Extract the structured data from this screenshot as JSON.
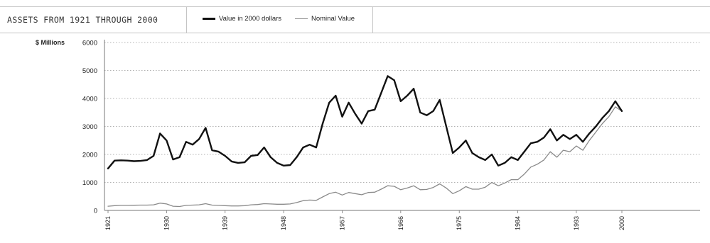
{
  "header": {
    "title": "ASSETS FROM 1921 THROUGH 2000"
  },
  "chart_data": {
    "type": "line",
    "title": "ASSETS FROM 1921 THROUGH 2000",
    "ylabel": "$ Millions",
    "xlabel": "",
    "ylim": [
      0,
      6000
    ],
    "xlim": [
      1921,
      2000
    ],
    "yticks": [
      0,
      1000,
      2000,
      3000,
      4000,
      5000,
      6000
    ],
    "xticks": [
      1921,
      1930,
      1939,
      1948,
      1957,
      1966,
      1975,
      1984,
      1993,
      2000
    ],
    "grid": "horizontal dotted",
    "legend_position": "top",
    "colors": {
      "real": "#111111",
      "nominal": "#8a8a8a"
    },
    "series": [
      {
        "name": "Value in 2000 dollars",
        "points": [
          [
            1921,
            1500
          ],
          [
            1922,
            1780
          ],
          [
            1923,
            1790
          ],
          [
            1924,
            1780
          ],
          [
            1925,
            1760
          ],
          [
            1926,
            1770
          ],
          [
            1927,
            1800
          ],
          [
            1928,
            1950
          ],
          [
            1929,
            2750
          ],
          [
            1930,
            2500
          ],
          [
            1931,
            1820
          ],
          [
            1932,
            1900
          ],
          [
            1933,
            2450
          ],
          [
            1934,
            2350
          ],
          [
            1935,
            2550
          ],
          [
            1936,
            2950
          ],
          [
            1937,
            2150
          ],
          [
            1938,
            2100
          ],
          [
            1939,
            1950
          ],
          [
            1940,
            1750
          ],
          [
            1941,
            1700
          ],
          [
            1942,
            1720
          ],
          [
            1943,
            1950
          ],
          [
            1944,
            1980
          ],
          [
            1945,
            2250
          ],
          [
            1946,
            1900
          ],
          [
            1947,
            1700
          ],
          [
            1948,
            1600
          ],
          [
            1949,
            1620
          ],
          [
            1950,
            1900
          ],
          [
            1951,
            2250
          ],
          [
            1952,
            2350
          ],
          [
            1953,
            2250
          ],
          [
            1954,
            3100
          ],
          [
            1955,
            3850
          ],
          [
            1956,
            4100
          ],
          [
            1957,
            3350
          ],
          [
            1958,
            3850
          ],
          [
            1959,
            3450
          ],
          [
            1960,
            3100
          ],
          [
            1961,
            3550
          ],
          [
            1962,
            3600
          ],
          [
            1963,
            4200
          ],
          [
            1964,
            4800
          ],
          [
            1965,
            4650
          ],
          [
            1966,
            3900
          ],
          [
            1967,
            4100
          ],
          [
            1968,
            4350
          ],
          [
            1969,
            3500
          ],
          [
            1970,
            3400
          ],
          [
            1971,
            3550
          ],
          [
            1972,
            3950
          ],
          [
            1973,
            3000
          ],
          [
            1974,
            2050
          ],
          [
            1975,
            2250
          ],
          [
            1976,
            2500
          ],
          [
            1977,
            2050
          ],
          [
            1978,
            1900
          ],
          [
            1979,
            1800
          ],
          [
            1980,
            2000
          ],
          [
            1981,
            1600
          ],
          [
            1982,
            1700
          ],
          [
            1983,
            1900
          ],
          [
            1984,
            1800
          ],
          [
            1985,
            2100
          ],
          [
            1986,
            2400
          ],
          [
            1987,
            2450
          ],
          [
            1988,
            2600
          ],
          [
            1989,
            2900
          ],
          [
            1990,
            2500
          ],
          [
            1991,
            2700
          ],
          [
            1992,
            2550
          ],
          [
            1993,
            2700
          ],
          [
            1994,
            2450
          ],
          [
            1995,
            2750
          ],
          [
            1996,
            3000
          ],
          [
            1997,
            3300
          ],
          [
            1998,
            3550
          ],
          [
            1999,
            3900
          ],
          [
            2000,
            3550
          ]
        ]
      },
      {
        "name": "Nominal Value",
        "points": [
          [
            1921,
            150
          ],
          [
            1922,
            170
          ],
          [
            1923,
            180
          ],
          [
            1924,
            180
          ],
          [
            1925,
            185
          ],
          [
            1926,
            190
          ],
          [
            1927,
            190
          ],
          [
            1928,
            200
          ],
          [
            1929,
            260
          ],
          [
            1930,
            230
          ],
          [
            1931,
            150
          ],
          [
            1932,
            140
          ],
          [
            1933,
            180
          ],
          [
            1934,
            190
          ],
          [
            1935,
            200
          ],
          [
            1936,
            240
          ],
          [
            1937,
            190
          ],
          [
            1938,
            180
          ],
          [
            1939,
            170
          ],
          [
            1940,
            160
          ],
          [
            1941,
            160
          ],
          [
            1942,
            170
          ],
          [
            1943,
            200
          ],
          [
            1944,
            210
          ],
          [
            1945,
            240
          ],
          [
            1946,
            230
          ],
          [
            1947,
            220
          ],
          [
            1948,
            220
          ],
          [
            1949,
            230
          ],
          [
            1950,
            280
          ],
          [
            1951,
            350
          ],
          [
            1952,
            370
          ],
          [
            1953,
            360
          ],
          [
            1954,
            480
          ],
          [
            1955,
            600
          ],
          [
            1956,
            650
          ],
          [
            1957,
            550
          ],
          [
            1958,
            640
          ],
          [
            1959,
            600
          ],
          [
            1960,
            560
          ],
          [
            1961,
            640
          ],
          [
            1962,
            650
          ],
          [
            1963,
            760
          ],
          [
            1964,
            880
          ],
          [
            1965,
            860
          ],
          [
            1966,
            740
          ],
          [
            1967,
            800
          ],
          [
            1968,
            880
          ],
          [
            1969,
            740
          ],
          [
            1970,
            750
          ],
          [
            1971,
            820
          ],
          [
            1972,
            950
          ],
          [
            1973,
            800
          ],
          [
            1974,
            600
          ],
          [
            1975,
            700
          ],
          [
            1976,
            850
          ],
          [
            1977,
            760
          ],
          [
            1978,
            760
          ],
          [
            1979,
            830
          ],
          [
            1980,
            1000
          ],
          [
            1981,
            880
          ],
          [
            1982,
            980
          ],
          [
            1983,
            1100
          ],
          [
            1984,
            1100
          ],
          [
            1985,
            1300
          ],
          [
            1986,
            1550
          ],
          [
            1987,
            1650
          ],
          [
            1988,
            1800
          ],
          [
            1989,
            2100
          ],
          [
            1990,
            1900
          ],
          [
            1991,
            2150
          ],
          [
            1992,
            2100
          ],
          [
            1993,
            2300
          ],
          [
            1994,
            2150
          ],
          [
            1995,
            2500
          ],
          [
            1996,
            2800
          ],
          [
            1997,
            3100
          ],
          [
            1998,
            3350
          ],
          [
            1999,
            3700
          ],
          [
            2000,
            3550
          ]
        ]
      }
    ]
  }
}
